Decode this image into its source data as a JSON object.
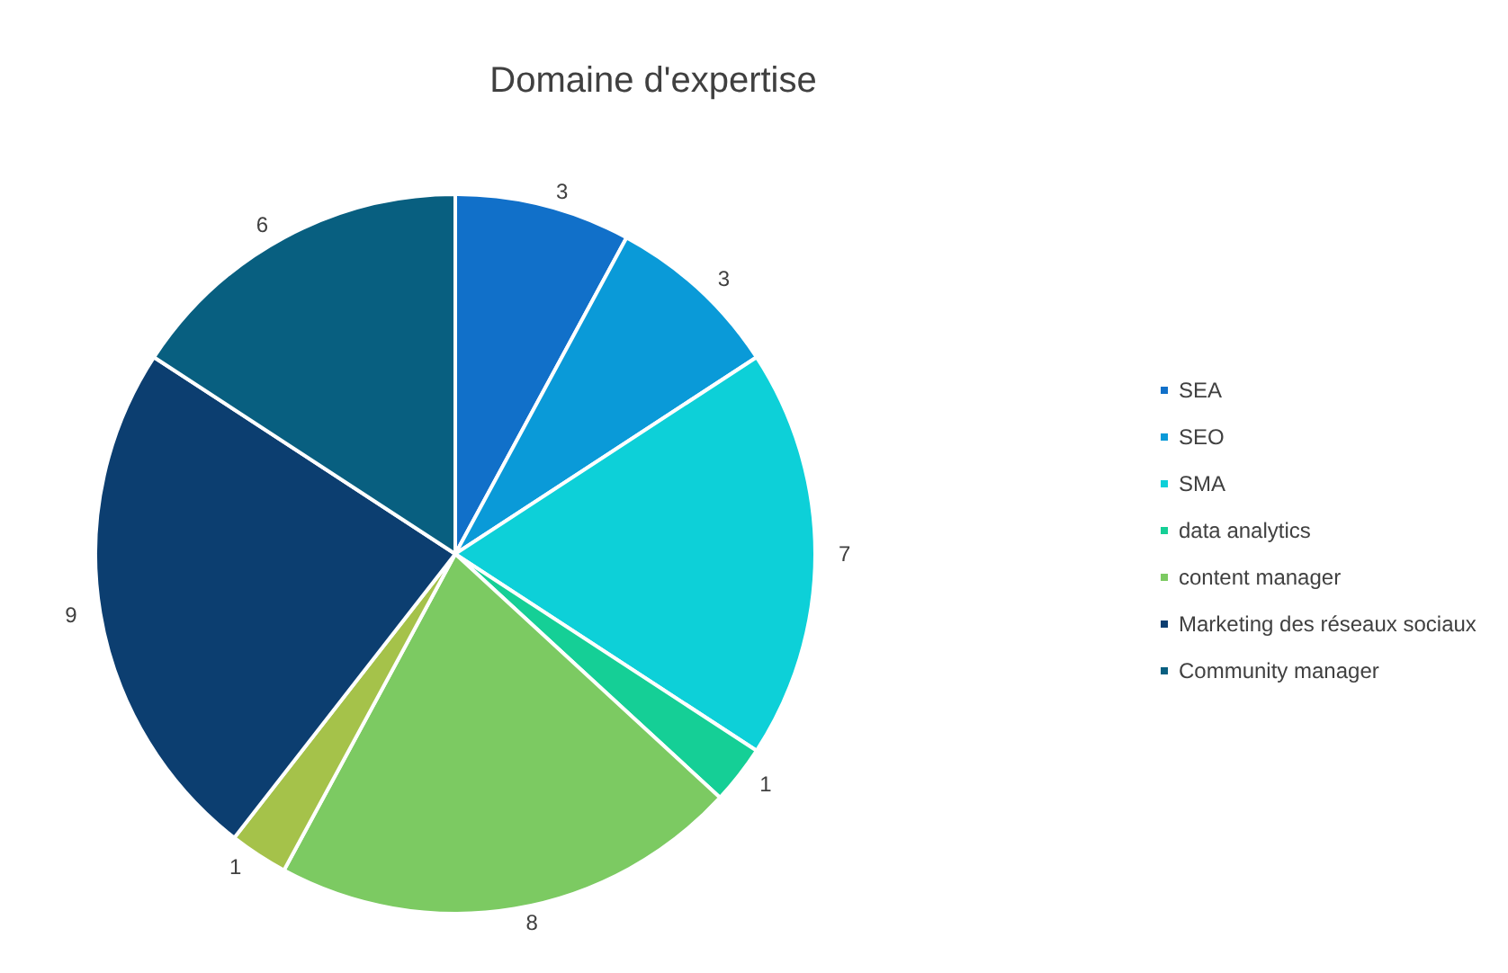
{
  "chart_data": {
    "type": "pie",
    "title": "Domaine d'expertise",
    "categories": [
      "SEA",
      "SEO",
      "SMA",
      "data analytics",
      "content manager",
      null,
      "Marketing des réseaux sociaux",
      "Community manager"
    ],
    "values": [
      3,
      3,
      7,
      1,
      8,
      1,
      9,
      6
    ],
    "colors": [
      "#1170c9",
      "#0a9ad8",
      "#0dd0d8",
      "#15cf96",
      "#7cca62",
      "#a5c24a",
      "#0c3e70",
      "#085f80"
    ],
    "data_labels": true,
    "legend": "right"
  }
}
